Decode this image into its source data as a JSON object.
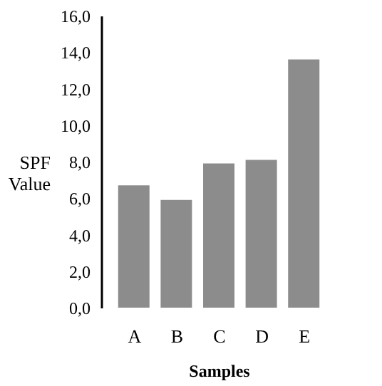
{
  "chart_data": {
    "type": "bar",
    "xlabel": "Samples",
    "ylabel": "SPF Value",
    "categories": [
      "A",
      "B",
      "C",
      "D",
      "E"
    ],
    "values": [
      6.7,
      5.9,
      7.9,
      8.1,
      13.6
    ],
    "color": "#8c8c8c",
    "ylim": [
      0,
      16
    ],
    "yticks": [
      {
        "value": 0,
        "label": "0,0"
      },
      {
        "value": 2,
        "label": "2,0"
      },
      {
        "value": 4,
        "label": "4,0"
      },
      {
        "value": 6,
        "label": "6,0"
      },
      {
        "value": 8,
        "label": "8,0"
      },
      {
        "value": 10,
        "label": "10,0"
      },
      {
        "value": 12,
        "label": "12,0"
      },
      {
        "value": 14,
        "label": "14,0"
      },
      {
        "value": 16,
        "label": "16,0"
      }
    ],
    "grid": false
  }
}
